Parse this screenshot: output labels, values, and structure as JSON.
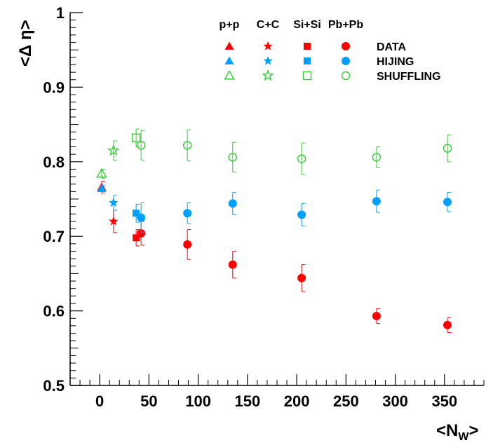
{
  "chart_data": {
    "type": "scatter",
    "xlabel": "<N",
    "xlabel_sub": "W",
    "xlabel_close": ">",
    "ylabel": "<Δ η>",
    "xlim": [
      -30,
      390
    ],
    "ylim": [
      0.5,
      1.0
    ],
    "x_ticks": [
      0,
      50,
      100,
      150,
      200,
      250,
      300,
      350
    ],
    "x_tick_labels": [
      "0",
      "50",
      "100",
      "150",
      "200",
      "250",
      "300",
      "350"
    ],
    "y_ticks": [
      0.5,
      0.6,
      0.7,
      0.8,
      0.9,
      1.0
    ],
    "y_tick_labels": [
      "0.5",
      "0.6",
      "0.7",
      "0.8",
      "0.9",
      "1"
    ],
    "grid": false,
    "legend_placement": "top-right",
    "systems": [
      "p+p",
      "C+C",
      "Si+Si",
      "Pb+Pb"
    ],
    "series": [
      {
        "name": "DATA",
        "color": "#ff0000",
        "filled": true,
        "points": [
          {
            "system": "p+p",
            "x": 2,
            "y": 0.766,
            "err": 0.008
          },
          {
            "system": "C+C",
            "x": 14,
            "y": 0.72,
            "err": 0.015
          },
          {
            "system": "Si+Si",
            "x": 37,
            "y": 0.698,
            "err": 0.011
          },
          {
            "system": "Pb+Pb",
            "x": 42,
            "y": 0.704,
            "err": 0.016
          },
          {
            "system": "Pb+Pb",
            "x": 89,
            "y": 0.689,
            "err": 0.02
          },
          {
            "system": "Pb+Pb",
            "x": 135,
            "y": 0.662,
            "err": 0.018
          },
          {
            "system": "Pb+Pb",
            "x": 205,
            "y": 0.644,
            "err": 0.018
          },
          {
            "system": "Pb+Pb",
            "x": 281,
            "y": 0.593,
            "err": 0.01
          },
          {
            "system": "Pb+Pb",
            "x": 353,
            "y": 0.581,
            "err": 0.01
          }
        ]
      },
      {
        "name": "HIJING",
        "color": "#00a0ff",
        "filled": true,
        "points": [
          {
            "system": "p+p",
            "x": 2,
            "y": 0.764,
            "err": 0.004
          },
          {
            "system": "C+C",
            "x": 14,
            "y": 0.745,
            "err": 0.01
          },
          {
            "system": "Si+Si",
            "x": 37,
            "y": 0.731,
            "err": 0.012
          },
          {
            "system": "Pb+Pb",
            "x": 42,
            "y": 0.725,
            "err": 0.02
          },
          {
            "system": "Pb+Pb",
            "x": 89,
            "y": 0.731,
            "err": 0.014
          },
          {
            "system": "Pb+Pb",
            "x": 135,
            "y": 0.744,
            "err": 0.015
          },
          {
            "system": "Pb+Pb",
            "x": 205,
            "y": 0.729,
            "err": 0.015
          },
          {
            "system": "Pb+Pb",
            "x": 281,
            "y": 0.747,
            "err": 0.015
          },
          {
            "system": "Pb+Pb",
            "x": 353,
            "y": 0.746,
            "err": 0.013
          }
        ]
      },
      {
        "name": "SHUFFLING",
        "color": "#33cc33",
        "filled": false,
        "points": [
          {
            "system": "p+p",
            "x": 2,
            "y": 0.784,
            "err": 0.006
          },
          {
            "system": "C+C",
            "x": 14,
            "y": 0.815,
            "err": 0.013
          },
          {
            "system": "Si+Si",
            "x": 37,
            "y": 0.832,
            "err": 0.012
          },
          {
            "system": "Pb+Pb",
            "x": 42,
            "y": 0.822,
            "err": 0.02
          },
          {
            "system": "Pb+Pb",
            "x": 89,
            "y": 0.822,
            "err": 0.021
          },
          {
            "system": "Pb+Pb",
            "x": 135,
            "y": 0.806,
            "err": 0.02
          },
          {
            "system": "Pb+Pb",
            "x": 205,
            "y": 0.804,
            "err": 0.021
          },
          {
            "system": "Pb+Pb",
            "x": 281,
            "y": 0.806,
            "err": 0.014
          },
          {
            "system": "Pb+Pb",
            "x": 353,
            "y": 0.818,
            "err": 0.018
          }
        ]
      }
    ],
    "marker_by_system": {
      "p+p": "triangle",
      "C+C": "star",
      "Si+Si": "square",
      "Pb+Pb": "circle"
    }
  }
}
